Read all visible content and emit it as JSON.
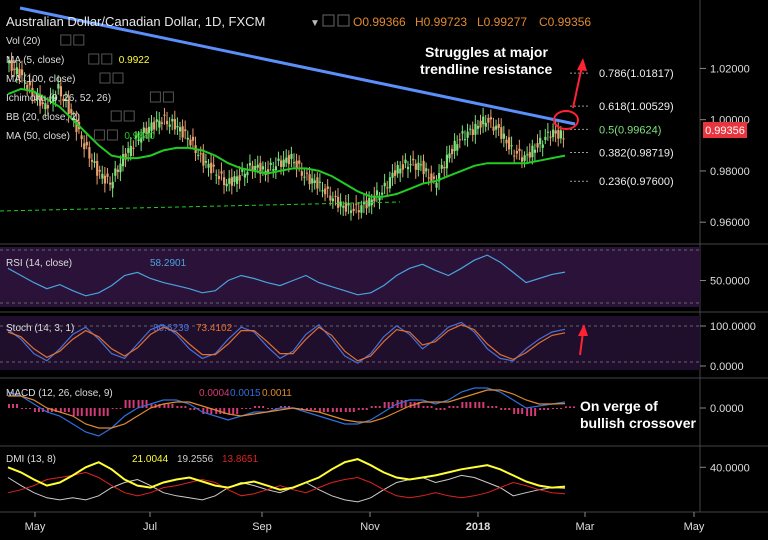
{
  "header": {
    "symbol": "Australian Dollar/Canadian Dollar, 1D, FXCM",
    "open": "O0.99366",
    "high": "H0.99723",
    "low": "L0.99277",
    "close": "C0.99356"
  },
  "price_badge": "0.99356",
  "colors": {
    "background": "#000000",
    "trendline": "#5b8ff9",
    "ma50": "#22cc22",
    "bull_candle": "#7fe27f",
    "bear_candle": "#e8a070",
    "rsi_line": "#4aa3df",
    "rsi_band": "#2a1238",
    "stoch_k": "#4a6fd8",
    "stoch_d": "#e07030",
    "macd": "#2f6fe0",
    "signal": "#e08a30",
    "hist": "#d43a7a",
    "dmi_plus": "#cccccc",
    "dmi_minus": "#dd2222",
    "adx": "#ffff33",
    "arrow": "#ff2233"
  },
  "indicators": [
    {
      "name": "Vol (20)"
    },
    {
      "name": "MA (5, close)",
      "value": "0.9922"
    },
    {
      "name": "MA (100, close)"
    },
    {
      "name": "Ichimoku (9, 26, 52, 26)"
    },
    {
      "name": "BB (20, close, 2)"
    },
    {
      "name": "MA (50, close)",
      "value": "0.9840"
    }
  ],
  "annotations": {
    "trend_note_line1": "Struggles at major",
    "trend_note_line2": "trendline resistance",
    "macd_note_line1": "On verge of",
    "macd_note_line2": "bullish crossover"
  },
  "chart_data": [
    {
      "type": "candlestick",
      "panel": "price",
      "x_labels": [
        "May",
        "Jul",
        "Sep",
        "Nov",
        "2018",
        "Mar",
        "May"
      ],
      "y_ticks": [
        "1.02000",
        "1.00000",
        "0.98000",
        "0.96000"
      ],
      "ylim": [
        0.955,
        1.035
      ],
      "close_series": [
        1.022,
        1.018,
        1.01,
        1.005,
        1.012,
        1.002,
        0.99,
        0.98,
        0.975,
        0.985,
        0.992,
        0.997,
        1.0,
        0.998,
        0.993,
        0.985,
        0.98,
        0.975,
        0.978,
        0.982,
        0.98,
        0.983,
        0.985,
        0.978,
        0.975,
        0.97,
        0.966,
        0.965,
        0.968,
        0.972,
        0.98,
        0.983,
        0.982,
        0.975,
        0.985,
        0.993,
        0.996,
        1.0,
        0.996,
        0.988,
        0.985,
        0.99,
        0.995,
        0.9936
      ],
      "fib_levels": [
        {
          "label": "0.786(1.01817)",
          "value": 1.01817
        },
        {
          "label": "0.618(1.00529)",
          "value": 1.00529
        },
        {
          "label": "0.5(0.99624)",
          "value": 0.99624
        },
        {
          "label": "0.382(0.98719)",
          "value": 0.98719
        },
        {
          "label": "0.236(0.97600)",
          "value": 0.976
        }
      ],
      "series": [
        {
          "name": "MA (50, close)",
          "values": [
            1.01,
            1.012,
            1.011,
            1.008,
            1.005,
            1.0,
            0.995,
            0.99,
            0.986,
            0.985,
            0.985,
            0.986,
            0.988,
            0.989,
            0.989,
            0.988,
            0.986,
            0.983,
            0.981,
            0.98,
            0.979,
            0.98,
            0.981,
            0.981,
            0.98,
            0.978,
            0.975,
            0.972,
            0.97,
            0.97,
            0.971,
            0.973,
            0.975,
            0.976,
            0.978,
            0.98,
            0.982,
            0.983,
            0.983,
            0.983,
            0.983,
            0.984,
            0.985,
            0.986
          ]
        }
      ]
    },
    {
      "type": "line",
      "panel": "rsi",
      "title": "RSI (14, close)",
      "value_label": "58.2901",
      "y_ticks": [
        "50.0000"
      ],
      "ylim": [
        25,
        80
      ],
      "values": [
        62,
        55,
        48,
        42,
        46,
        40,
        35,
        38,
        45,
        55,
        58,
        52,
        48,
        45,
        42,
        38,
        40,
        50,
        55,
        52,
        48,
        45,
        50,
        55,
        48,
        44,
        40,
        36,
        38,
        45,
        55,
        62,
        66,
        60,
        55,
        62,
        70,
        75,
        68,
        58,
        48,
        52,
        56,
        58.3
      ]
    },
    {
      "type": "line",
      "panel": "stoch",
      "title": "Stoch (14, 3, 1)",
      "y_ticks": [
        "100.0000",
        "0.0000"
      ],
      "ylim": [
        0,
        100
      ],
      "series": [
        {
          "name": "80.6239",
          "values": [
            80,
            60,
            30,
            15,
            40,
            70,
            85,
            60,
            30,
            20,
            50,
            80,
            90,
            70,
            40,
            20,
            30,
            60,
            85,
            75,
            45,
            20,
            35,
            70,
            90,
            60,
            25,
            10,
            30,
            65,
            88,
            70,
            40,
            60,
            85,
            95,
            75,
            40,
            20,
            15,
            40,
            60,
            75,
            80.6
          ]
        },
        {
          "name": "73.4102",
          "values": [
            75,
            65,
            40,
            22,
            35,
            60,
            78,
            65,
            40,
            25,
            42,
            70,
            85,
            75,
            50,
            28,
            28,
            50,
            78,
            78,
            55,
            30,
            30,
            60,
            85,
            68,
            35,
            15,
            25,
            55,
            80,
            75,
            48,
            55,
            78,
            90,
            80,
            50,
            28,
            18,
            32,
            52,
            68,
            73.4
          ]
        }
      ]
    },
    {
      "type": "line",
      "panel": "macd",
      "title": "MACD (12, 26, close, 9)",
      "y_ticks": [
        "0.0000"
      ],
      "ylim": [
        -0.008,
        0.006
      ],
      "series": [
        {
          "name": "0.0015",
          "values": [
            0.004,
            0.003,
            0.001,
            -0.001,
            -0.002,
            -0.004,
            -0.006,
            -0.007,
            -0.005,
            -0.002,
            0.0,
            0.001,
            0.002,
            0.002,
            0.001,
            -0.001,
            -0.002,
            -0.003,
            -0.002,
            -0.001,
            -0.001,
            0.0,
            0.0,
            -0.001,
            -0.002,
            -0.003,
            -0.004,
            -0.004,
            -0.003,
            -0.001,
            0.001,
            0.002,
            0.002,
            0.001,
            0.002,
            0.004,
            0.005,
            0.005,
            0.004,
            0.002,
            0.0,
            0.0005,
            0.001,
            0.0015
          ]
        },
        {
          "name": "0.0011",
          "values": [
            0.003,
            0.003,
            0.002,
            0.0,
            -0.001,
            -0.002,
            -0.004,
            -0.005,
            -0.005,
            -0.004,
            -0.002,
            0.0,
            0.001,
            0.0015,
            0.0015,
            0.0005,
            -0.0005,
            -0.0015,
            -0.002,
            -0.0015,
            -0.001,
            -0.0005,
            0.0,
            -0.0005,
            -0.001,
            -0.002,
            -0.003,
            -0.0035,
            -0.0035,
            -0.0025,
            -0.001,
            0.0005,
            0.0015,
            0.0015,
            0.0015,
            0.0025,
            0.0035,
            0.0045,
            0.0045,
            0.0035,
            0.002,
            0.001,
            0.001,
            0.0011
          ]
        },
        {
          "name": "0.0004",
          "values": [
            0.001,
            0.0,
            -0.001,
            -0.001,
            -0.001,
            -0.002,
            -0.002,
            -0.002,
            0.0,
            0.002,
            0.002,
            0.001,
            0.001,
            0.0005,
            -0.0005,
            -0.0015,
            -0.0015,
            -0.0015,
            0.0,
            0.0005,
            0.0,
            0.0005,
            0.0,
            -0.0005,
            -0.001,
            -0.001,
            -0.001,
            -0.0005,
            0.0005,
            0.0015,
            0.002,
            0.0015,
            0.0005,
            -0.0005,
            0.0005,
            0.0015,
            0.0015,
            0.0005,
            -0.0005,
            -0.0015,
            -0.002,
            -0.0005,
            0.0,
            0.0004
          ]
        }
      ]
    },
    {
      "type": "line",
      "panel": "dmi",
      "title": "DMI (13, 8)",
      "y_ticks": [
        "40.0000"
      ],
      "ylim": [
        0,
        55
      ],
      "series": [
        {
          "name": "21.0044",
          "values": [
            40,
            35,
            28,
            22,
            25,
            32,
            40,
            45,
            38,
            28,
            22,
            20,
            25,
            28,
            30,
            26,
            22,
            20,
            24,
            26,
            22,
            18,
            20,
            25,
            30,
            38,
            45,
            48,
            42,
            35,
            30,
            28,
            30,
            32,
            35,
            38,
            40,
            42,
            38,
            32,
            26,
            22,
            20,
            21
          ]
        },
        {
          "name": "19.2556",
          "values": [
            30,
            22,
            15,
            10,
            8,
            10,
            8,
            12,
            20,
            25,
            28,
            22,
            15,
            12,
            10,
            8,
            12,
            20,
            25,
            22,
            18,
            15,
            20,
            25,
            18,
            12,
            8,
            6,
            10,
            18,
            25,
            28,
            30,
            25,
            28,
            32,
            30,
            25,
            20,
            12,
            15,
            18,
            20,
            19.3
          ]
        },
        {
          "name": "13.8651",
          "values": [
            15,
            18,
            22,
            28,
            30,
            32,
            35,
            30,
            22,
            15,
            12,
            15,
            20,
            22,
            25,
            28,
            25,
            18,
            12,
            14,
            18,
            22,
            18,
            15,
            20,
            25,
            28,
            30,
            25,
            18,
            12,
            10,
            12,
            15,
            12,
            10,
            12,
            15,
            20,
            25,
            22,
            18,
            15,
            13.9
          ]
        }
      ]
    }
  ]
}
